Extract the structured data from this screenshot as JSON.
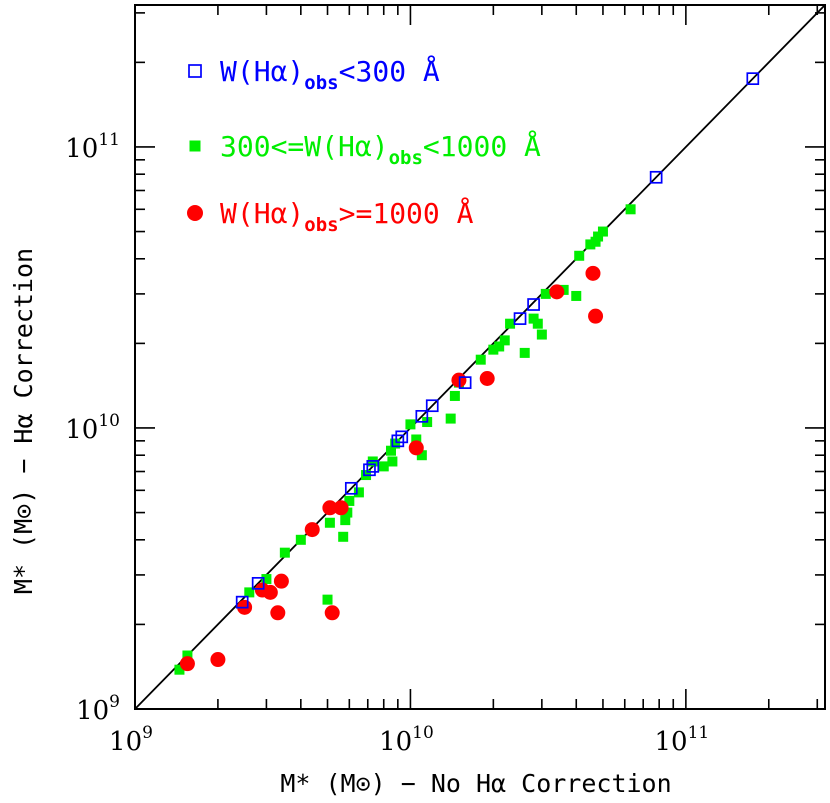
{
  "chart_data": {
    "type": "scatter",
    "title": "",
    "xlabel": "M* (M⊙) − No Hα Correction",
    "ylabel": "M* (M⊙) − Hα Correction",
    "xscale": "log",
    "yscale": "log",
    "xlim": [
      1000000000,
      320000000000
    ],
    "ylim": [
      1000000000,
      320000000000
    ],
    "x_major_ticks": [
      {
        "value": 1000000000,
        "base": "10",
        "exp": "9"
      },
      {
        "value": 10000000000,
        "base": "10",
        "exp": "10"
      },
      {
        "value": 100000000000,
        "base": "10",
        "exp": "11"
      }
    ],
    "y_major_ticks": [
      {
        "value": 1000000000,
        "base": "10",
        "exp": "9"
      },
      {
        "value": 10000000000,
        "base": "10",
        "exp": "10"
      },
      {
        "value": 100000000000,
        "base": "10",
        "exp": "11"
      }
    ],
    "one_to_one_line": true,
    "legend_placement": "top-left",
    "series": [
      {
        "name": "W(Hα)obs<300 Å",
        "legend_parts": [
          "W(Hα)",
          "obs",
          "<300 Å"
        ],
        "marker": "open-square",
        "color": "#0000ff",
        "points": [
          [
            2450000000.0,
            2400000000.0
          ],
          [
            2800000000.0,
            2800000000.0
          ],
          [
            6100000000.0,
            6100000000.0
          ],
          [
            7100000000.0,
            7100000000.0
          ],
          [
            7300000000.0,
            7300000000.0
          ],
          [
            9000000000.0,
            9000000000.0
          ],
          [
            9300000000.0,
            9300000000.0
          ],
          [
            11000000000.0,
            11000000000.0
          ],
          [
            12000000000.0,
            12000000000.0
          ],
          [
            15800000000.0,
            14500000000.0
          ],
          [
            25000000000.0,
            24500000000.0
          ],
          [
            28000000000.0,
            27500000000.0
          ],
          [
            78000000000.0,
            78000000000.0
          ],
          [
            175000000000.0,
            175000000000.0
          ]
        ]
      },
      {
        "name": "300<=W(Hα)obs<1000 Å",
        "legend_parts": [
          "300<=W(Hα)",
          "obs",
          "<1000 Å"
        ],
        "marker": "filled-square",
        "color": "#00ee00",
        "points": [
          [
            1450000000.0,
            1380000000.0
          ],
          [
            1550000000.0,
            1550000000.0
          ],
          [
            2600000000.0,
            2600000000.0
          ],
          [
            3000000000.0,
            2900000000.0
          ],
          [
            3500000000.0,
            3600000000.0
          ],
          [
            4000000000.0,
            4000000000.0
          ],
          [
            5000000000.0,
            2450000000.0
          ],
          [
            5100000000.0,
            4600000000.0
          ],
          [
            5300000000.0,
            5200000000.0
          ],
          [
            5700000000.0,
            4100000000.0
          ],
          [
            5800000000.0,
            4700000000.0
          ],
          [
            5900000000.0,
            5000000000.0
          ],
          [
            6000000000.0,
            5500000000.0
          ],
          [
            6500000000.0,
            5900000000.0
          ],
          [
            6900000000.0,
            6800000000.0
          ],
          [
            7300000000.0,
            7600000000.0
          ],
          [
            8000000000.0,
            7300000000.0
          ],
          [
            8500000000.0,
            8300000000.0
          ],
          [
            8600000000.0,
            7600000000.0
          ],
          [
            8800000000.0,
            8800000000.0
          ],
          [
            10000000000.0,
            10300000000.0
          ],
          [
            10500000000.0,
            9100000000.0
          ],
          [
            11000000000.0,
            8000000000.0
          ],
          [
            11500000000.0,
            10500000000.0
          ],
          [
            14000000000.0,
            10800000000.0
          ],
          [
            14500000000.0,
            13000000000.0
          ],
          [
            15000000000.0,
            14500000000.0
          ],
          [
            18000000000.0,
            17500000000.0
          ],
          [
            20000000000.0,
            19000000000.0
          ],
          [
            21000000000.0,
            19500000000.0
          ],
          [
            22000000000.0,
            20500000000.0
          ],
          [
            23000000000.0,
            23500000000.0
          ],
          [
            26000000000.0,
            18500000000.0
          ],
          [
            28000000000.0,
            24500000000.0
          ],
          [
            29000000000.0,
            23500000000.0
          ],
          [
            30000000000.0,
            21500000000.0
          ],
          [
            31000000000.0,
            30000000000.0
          ],
          [
            36000000000.0,
            31000000000.0
          ],
          [
            40000000000.0,
            29500000000.0
          ],
          [
            41000000000.0,
            41000000000.0
          ],
          [
            45000000000.0,
            45000000000.0
          ],
          [
            47000000000.0,
            46000000000.0
          ],
          [
            48000000000.0,
            48000000000.0
          ],
          [
            50000000000.0,
            50000000000.0
          ],
          [
            63000000000.0,
            60000000000.0
          ]
        ]
      },
      {
        "name": "W(Hα)obs>=1000 Å",
        "legend_parts": [
          "W(Hα)",
          "obs",
          ">=1000 Å"
        ],
        "marker": "filled-circle",
        "color": "#ff0000",
        "points": [
          [
            1550000000.0,
            1450000000.0
          ],
          [
            2000000000.0,
            1500000000.0
          ],
          [
            2500000000.0,
            2300000000.0
          ],
          [
            2900000000.0,
            2650000000.0
          ],
          [
            3100000000.0,
            2600000000.0
          ],
          [
            3300000000.0,
            2200000000.0
          ],
          [
            3400000000.0,
            2850000000.0
          ],
          [
            4400000000.0,
            4350000000.0
          ],
          [
            5100000000.0,
            5200000000.0
          ],
          [
            5200000000.0,
            2200000000.0
          ],
          [
            5600000000.0,
            5200000000.0
          ],
          [
            10500000000.0,
            8500000000.0
          ],
          [
            15000000000.0,
            14800000000.0
          ],
          [
            19000000000.0,
            15000000000.0
          ],
          [
            34000000000.0,
            30500000000.0
          ],
          [
            46000000000.0,
            35500000000.0
          ],
          [
            47000000000.0,
            25000000000.0
          ]
        ]
      }
    ]
  }
}
